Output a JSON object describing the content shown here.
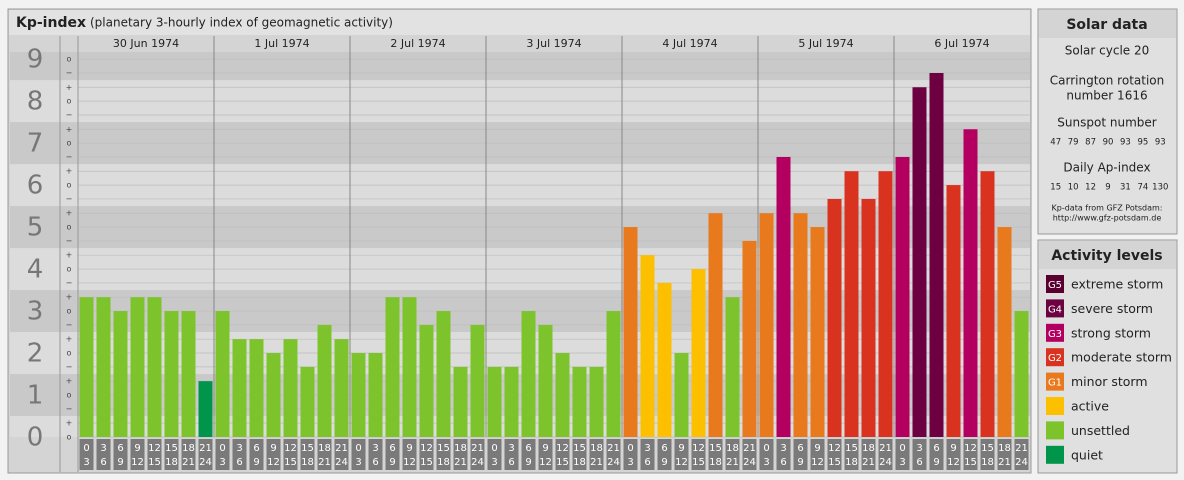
{
  "title": "Kp-index",
  "subtitle": "(planetary 3-hourly index of geomagnetic activity)",
  "chart_data": {
    "type": "bar",
    "days": [
      "30 Jun 1974",
      "1 Jul 1974",
      "2 Jul 1974",
      "3 Jul 1974",
      "4 Jul 1974",
      "5 Jul 1974",
      "6 Jul 1974"
    ],
    "slot_labels": [
      [
        "0",
        "3"
      ],
      [
        "3",
        "6"
      ],
      [
        "6",
        "9"
      ],
      [
        "9",
        "12"
      ],
      [
        "12",
        "15"
      ],
      [
        "15",
        "18"
      ],
      [
        "18",
        "21"
      ],
      [
        "21",
        "24"
      ]
    ],
    "values": [
      3.33,
      3.33,
      3,
      3.33,
      3.33,
      3,
      3,
      1.33,
      3,
      2.33,
      2.33,
      2,
      2.33,
      1.67,
      2.67,
      2.33,
      2,
      2,
      3.33,
      3.33,
      2.67,
      3,
      1.67,
      2.67,
      1.67,
      1.67,
      3,
      2.67,
      2,
      1.67,
      1.67,
      3,
      5,
      4.33,
      3.67,
      2,
      4,
      5.33,
      3.33,
      4.67,
      5.33,
      6.67,
      5.33,
      5,
      5.67,
      6.33,
      5.67,
      6.33,
      6.67,
      8.33,
      8.67,
      6,
      7.33,
      6.33,
      5,
      3
    ],
    "colors": [
      "#7dc32b",
      "#7dc32b",
      "#7dc32b",
      "#7dc32b",
      "#7dc32b",
      "#7dc32b",
      "#7dc32b",
      "#00954a",
      "#7dc32b",
      "#7dc32b",
      "#7dc32b",
      "#7dc32b",
      "#7dc32b",
      "#7dc32b",
      "#7dc32b",
      "#7dc32b",
      "#7dc32b",
      "#7dc32b",
      "#7dc32b",
      "#7dc32b",
      "#7dc32b",
      "#7dc32b",
      "#7dc32b",
      "#7dc32b",
      "#7dc32b",
      "#7dc32b",
      "#7dc32b",
      "#7dc32b",
      "#7dc32b",
      "#7dc32b",
      "#7dc32b",
      "#7dc32b",
      "#e8791c",
      "#fcc000",
      "#fcc000",
      "#7dc32b",
      "#fcc000",
      "#e8791c",
      "#7dc32b",
      "#e8791c",
      "#e8791c",
      "#b30060",
      "#e8791c",
      "#e8791c",
      "#d9321f",
      "#d9321f",
      "#d9321f",
      "#d9321f",
      "#b30060",
      "#6c0040",
      "#6c0040",
      "#d9321f",
      "#b30060",
      "#d9321f",
      "#e8791c",
      "#7dc32b"
    ],
    "ylim": [
      0,
      9.17
    ],
    "yticks": [
      0,
      1,
      2,
      3,
      4,
      5,
      6,
      7,
      8,
      9
    ],
    "minor_yticks": [
      {
        "value": 0,
        "label": "o"
      },
      {
        "value": 0.33,
        "label": "+"
      },
      {
        "value": 0.67,
        "label": "−"
      },
      {
        "value": 1,
        "label": "o"
      },
      {
        "value": 1.33,
        "label": "+"
      },
      {
        "value": 1.67,
        "label": "−"
      },
      {
        "value": 2,
        "label": "o"
      },
      {
        "value": 2.33,
        "label": "+"
      },
      {
        "value": 2.67,
        "label": "−"
      },
      {
        "value": 3,
        "label": "o"
      },
      {
        "value": 3.33,
        "label": "+"
      },
      {
        "value": 3.67,
        "label": "−"
      },
      {
        "value": 4,
        "label": "o"
      },
      {
        "value": 4.33,
        "label": "+"
      },
      {
        "value": 4.67,
        "label": "−"
      },
      {
        "value": 5,
        "label": "o"
      },
      {
        "value": 5.33,
        "label": "+"
      },
      {
        "value": 5.67,
        "label": "−"
      },
      {
        "value": 6,
        "label": "o"
      },
      {
        "value": 6.33,
        "label": "+"
      },
      {
        "value": 6.67,
        "label": "−"
      },
      {
        "value": 7,
        "label": "o"
      },
      {
        "value": 7.33,
        "label": "+"
      },
      {
        "value": 7.67,
        "label": "−"
      },
      {
        "value": 8,
        "label": "o"
      },
      {
        "value": 8.33,
        "label": "+"
      },
      {
        "value": 8.67,
        "label": "−"
      },
      {
        "value": 9,
        "label": "o"
      }
    ],
    "grid": true
  },
  "solar_data": {
    "title": "Solar data",
    "cycle": "Solar cycle 20",
    "carrington": [
      "Carrington rotation",
      "number 1616"
    ],
    "sunspot_title": "Sunspot number",
    "sunspot_numbers": [
      47,
      79,
      87,
      90,
      93,
      95,
      93
    ],
    "ap_title": "Daily Ap-index",
    "ap_values": [
      15,
      10,
      12,
      9,
      31,
      74,
      130
    ],
    "source": [
      "Kp-data from GFZ Potsdam:",
      "http://www.gfz-potsdam.de"
    ]
  },
  "activity_levels": {
    "title": "Activity levels",
    "items": [
      {
        "code": "G5",
        "label": "extreme storm",
        "color": "#5a0030"
      },
      {
        "code": "G4",
        "label": "severe storm",
        "color": "#6c0040"
      },
      {
        "code": "G3",
        "label": "strong storm",
        "color": "#b30060"
      },
      {
        "code": "G2",
        "label": "moderate storm",
        "color": "#d9321f"
      },
      {
        "code": "G1",
        "label": "minor storm",
        "color": "#e8791c"
      },
      {
        "label": "active",
        "color": "#fcc000"
      },
      {
        "label": "unsettled",
        "color": "#7dc32b"
      },
      {
        "label": "quiet",
        "color": "#00954a"
      }
    ]
  }
}
